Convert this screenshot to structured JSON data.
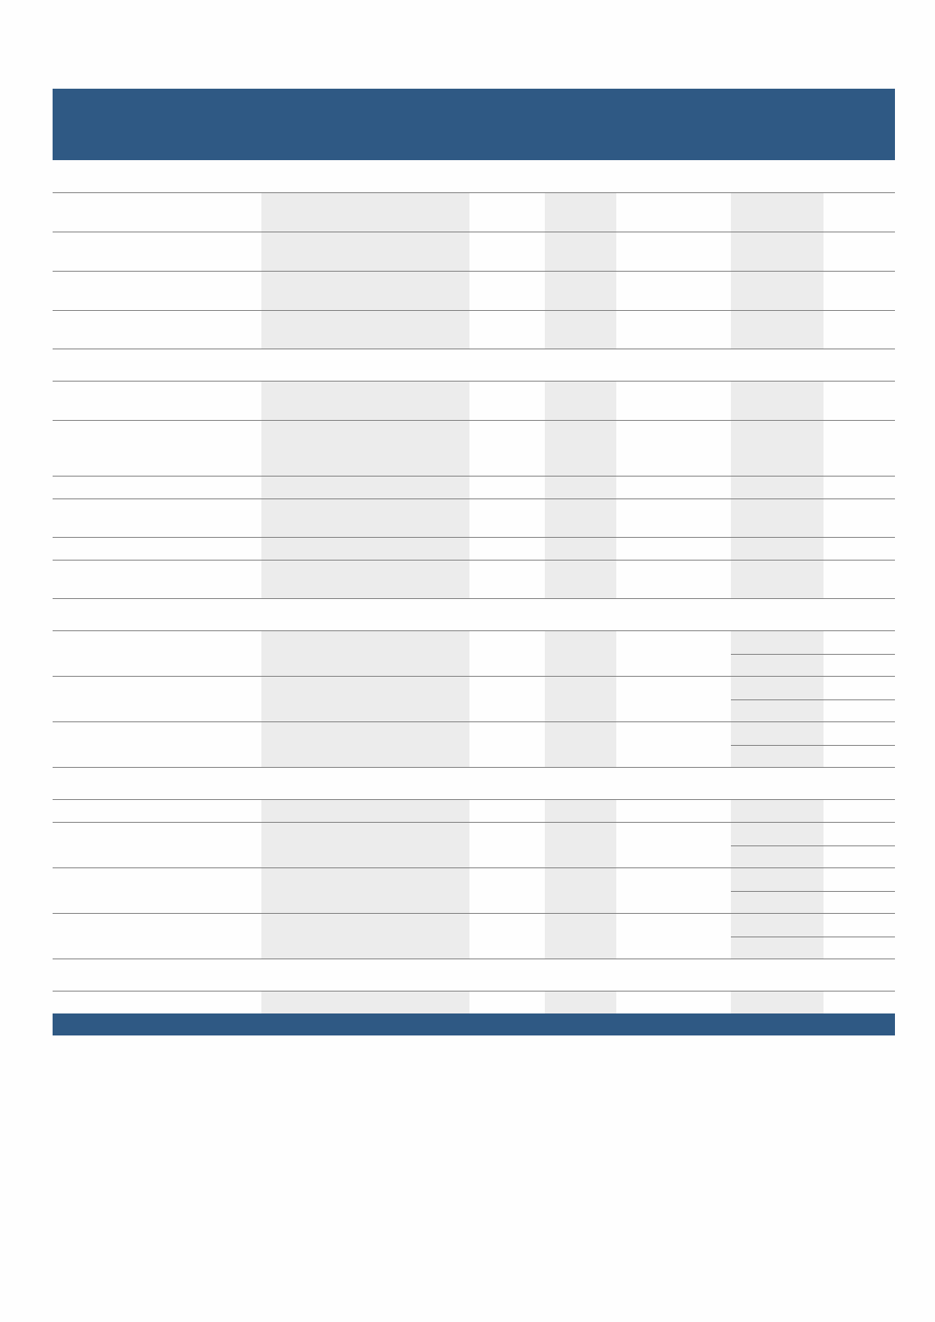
{
  "colors": {
    "header_bar": "#2f5984",
    "footer_bar": "#2f5984",
    "shaded_cell": "#ececec",
    "rule_line": "#7a7a7a"
  }
}
